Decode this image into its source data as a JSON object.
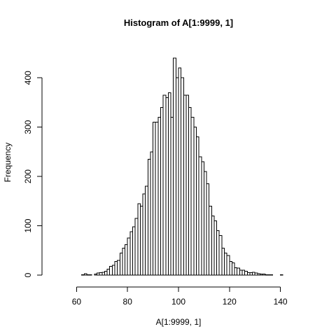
{
  "chart_data": {
    "type": "bar",
    "title": "Histogram of A[1:9999, 1]",
    "xlabel": "A[1:9999, 1]",
    "ylabel": "Frequency",
    "xlim": [
      50,
      150
    ],
    "ylim": [
      0,
      440
    ],
    "grid": false,
    "bin_width": 1,
    "bins_start": [
      62,
      63,
      64,
      65,
      66,
      67,
      68,
      69,
      70,
      71,
      72,
      73,
      74,
      75,
      76,
      77,
      78,
      79,
      80,
      81,
      82,
      83,
      84,
      85,
      86,
      87,
      88,
      89,
      90,
      91,
      92,
      93,
      94,
      95,
      96,
      97,
      98,
      99,
      100,
      101,
      102,
      103,
      104,
      105,
      106,
      107,
      108,
      109,
      110,
      111,
      112,
      113,
      114,
      115,
      116,
      117,
      118,
      119,
      120,
      121,
      122,
      123,
      124,
      125,
      126,
      127,
      128,
      129,
      130,
      131,
      132,
      133,
      134,
      135,
      136,
      137,
      138,
      139,
      140,
      141,
      142,
      143,
      144
    ],
    "counts": [
      1,
      3,
      1,
      1,
      0,
      2,
      4,
      5,
      6,
      8,
      12,
      18,
      20,
      28,
      30,
      45,
      55,
      62,
      75,
      88,
      98,
      115,
      145,
      140,
      165,
      180,
      235,
      250,
      310,
      310,
      320,
      340,
      365,
      360,
      370,
      320,
      440,
      400,
      420,
      400,
      365,
      365,
      340,
      320,
      300,
      280,
      240,
      230,
      210,
      185,
      140,
      120,
      110,
      90,
      80,
      55,
      45,
      40,
      28,
      25,
      15,
      14,
      10,
      10,
      8,
      5,
      5,
      6,
      4,
      3,
      2,
      2,
      1,
      1,
      1,
      0,
      0,
      0,
      1,
      0,
      0,
      0,
      0
    ],
    "x_ticks": [
      60,
      80,
      100,
      120,
      140
    ],
    "y_ticks": [
      0,
      100,
      200,
      300,
      400
    ]
  }
}
